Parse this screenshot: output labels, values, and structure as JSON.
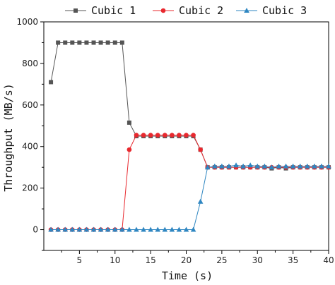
{
  "chart_data": {
    "type": "line",
    "xlabel": "Time (s)",
    "ylabel": "Throughput (MB/s)",
    "xlim": [
      0,
      40
    ],
    "ylim": [
      -100,
      1000
    ],
    "xticks": [
      5,
      10,
      15,
      20,
      25,
      30,
      35,
      40
    ],
    "yticks": [
      0,
      200,
      400,
      600,
      800,
      1000
    ],
    "grid": false,
    "legend_position": "top",
    "series": [
      {
        "name": "Cubic 1",
        "color": "#555555",
        "marker": "square",
        "x": [
          1,
          2,
          3,
          4,
          5,
          6,
          7,
          8,
          9,
          10,
          11,
          12,
          13,
          14,
          15,
          16,
          17,
          18,
          19,
          20,
          21,
          22,
          23,
          24,
          25,
          26,
          27,
          28,
          29,
          30,
          31,
          32,
          33,
          34,
          35,
          36,
          37,
          38,
          39,
          40
        ],
        "y": [
          710,
          900,
          900,
          900,
          900,
          900,
          900,
          900,
          900,
          900,
          900,
          515,
          450,
          450,
          450,
          450,
          450,
          450,
          450,
          450,
          450,
          385,
          300,
          300,
          300,
          300,
          300,
          300,
          300,
          300,
          300,
          295,
          300,
          295,
          300,
          300,
          300,
          300,
          300,
          300
        ]
      },
      {
        "name": "Cubic 2",
        "color": "#e8282e",
        "marker": "circle",
        "x": [
          1,
          2,
          3,
          4,
          5,
          6,
          7,
          8,
          9,
          10,
          11,
          12,
          13,
          14,
          15,
          16,
          17,
          18,
          19,
          20,
          21,
          22,
          23,
          24,
          25,
          26,
          27,
          28,
          29,
          30,
          31,
          32,
          33,
          34,
          35,
          36,
          37,
          38,
          39,
          40
        ],
        "y": [
          0,
          0,
          0,
          0,
          0,
          0,
          0,
          0,
          0,
          0,
          0,
          385,
          455,
          455,
          455,
          455,
          455,
          455,
          455,
          455,
          455,
          385,
          300,
          300,
          300,
          300,
          300,
          300,
          300,
          300,
          300,
          300,
          300,
          300,
          300,
          300,
          300,
          300,
          300,
          300
        ]
      },
      {
        "name": "Cubic 3",
        "color": "#2e86c1",
        "marker": "triangle",
        "x": [
          1,
          2,
          3,
          4,
          5,
          6,
          7,
          8,
          9,
          10,
          11,
          12,
          13,
          14,
          15,
          16,
          17,
          18,
          19,
          20,
          21,
          22,
          23,
          24,
          25,
          26,
          27,
          28,
          29,
          30,
          31,
          32,
          33,
          34,
          35,
          36,
          37,
          38,
          39,
          40
        ],
        "y": [
          0,
          0,
          0,
          0,
          0,
          0,
          0,
          0,
          0,
          0,
          0,
          0,
          0,
          0,
          0,
          0,
          0,
          0,
          0,
          0,
          0,
          135,
          300,
          305,
          305,
          305,
          310,
          305,
          310,
          305,
          305,
          300,
          305,
          305,
          305,
          305,
          305,
          305,
          305,
          305
        ]
      }
    ]
  }
}
